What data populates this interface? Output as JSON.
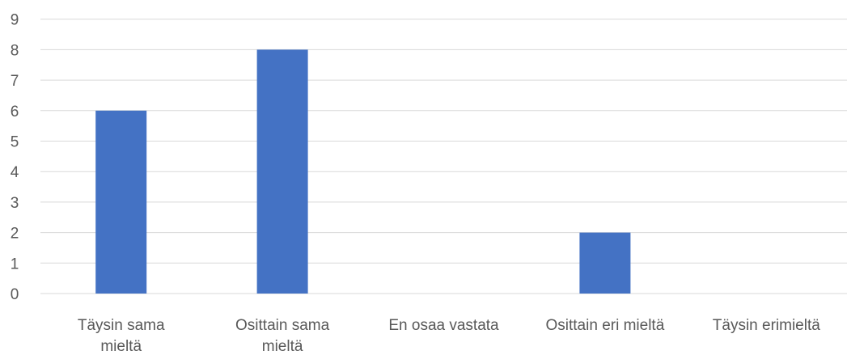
{
  "chart_data": {
    "type": "bar",
    "categories": [
      [
        "Täysin sama",
        "mieltä"
      ],
      [
        "Osittain sama",
        "mieltä"
      ],
      [
        "En osaa vastata"
      ],
      [
        "Osittain eri mieltä"
      ],
      [
        "Täysin erimieltä"
      ]
    ],
    "values": [
      6,
      8,
      0,
      2,
      0
    ],
    "ylim": [
      0,
      9
    ],
    "yticks": [
      "0",
      "1",
      "2",
      "3",
      "4",
      "5",
      "6",
      "7",
      "8",
      "9"
    ],
    "grid": true,
    "bar_color": "#4472C4",
    "grid_color": "#d9d9d9",
    "label_color": "#595959"
  }
}
